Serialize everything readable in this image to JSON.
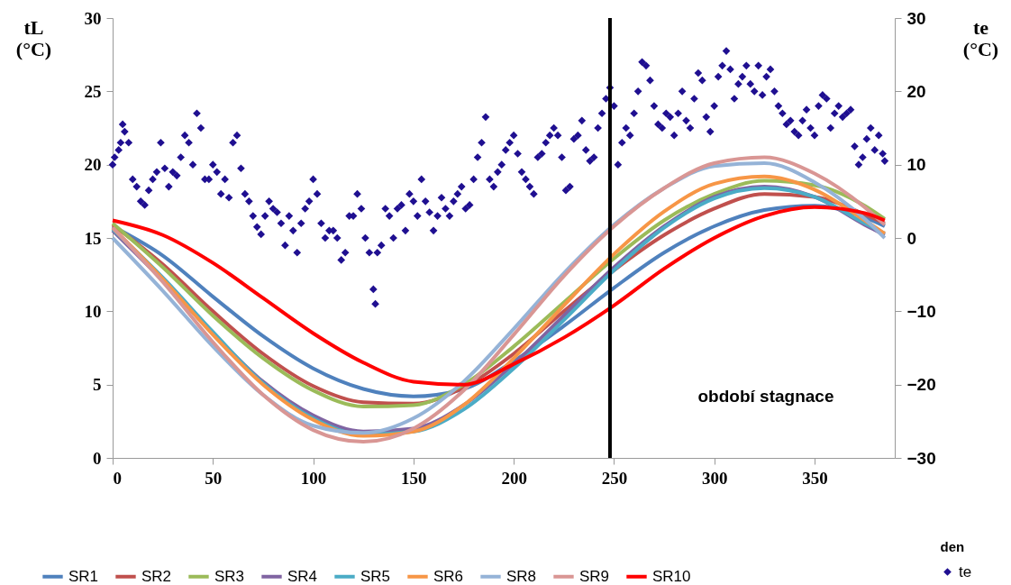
{
  "chart_data": {
    "type": "line",
    "ylabel": "tL (°C)",
    "y2label": "te (°C)",
    "xlabel": "den",
    "xlim": [
      0,
      390
    ],
    "xticks": [
      0,
      50,
      100,
      150,
      200,
      250,
      300,
      350
    ],
    "ylim": [
      0,
      30
    ],
    "yticks": [
      0,
      5,
      10,
      15,
      20,
      25,
      30
    ],
    "y2lim": [
      -30,
      30
    ],
    "y2ticks": [
      -30,
      -20,
      -10,
      0,
      10,
      20,
      30
    ],
    "legend": "bottom",
    "annotations": [
      "období stagnace"
    ],
    "ref_lines": [
      {
        "axis": "x",
        "value": 248,
        "color": "#000000"
      }
    ],
    "x": [
      0,
      25,
      50,
      75,
      100,
      125,
      150,
      175,
      200,
      225,
      250,
      275,
      300,
      325,
      350,
      375,
      385
    ],
    "series": [
      {
        "name": "SR1",
        "color": "#4f81bd",
        "values": [
          15.8,
          13.8,
          11.0,
          8.3,
          6.1,
          4.7,
          4.2,
          4.7,
          6.6,
          9.0,
          11.6,
          14.0,
          15.8,
          16.9,
          17.2,
          16.4,
          15.8
        ]
      },
      {
        "name": "SR2",
        "color": "#c0504d",
        "values": [
          15.9,
          13.2,
          10.0,
          7.1,
          4.9,
          3.8,
          3.7,
          4.8,
          7.1,
          10.0,
          12.8,
          15.2,
          17.0,
          18.0,
          17.8,
          16.6,
          16.0
        ]
      },
      {
        "name": "SR3",
        "color": "#9bbb59",
        "values": [
          16.0,
          13.0,
          9.7,
          6.8,
          4.6,
          3.5,
          3.6,
          5.0,
          7.6,
          10.6,
          13.6,
          16.2,
          18.0,
          18.9,
          18.6,
          17.2,
          16.3
        ]
      },
      {
        "name": "SR4",
        "color": "#8064a2",
        "values": [
          15.5,
          12.1,
          8.5,
          5.2,
          2.9,
          1.8,
          2.0,
          3.6,
          6.4,
          9.7,
          13.0,
          15.8,
          17.8,
          18.5,
          17.8,
          15.9,
          15.2
        ]
      },
      {
        "name": "SR5",
        "color": "#4bacc6",
        "values": [
          15.6,
          12.3,
          8.6,
          5.1,
          2.7,
          1.6,
          1.8,
          3.3,
          6.1,
          9.4,
          12.8,
          15.7,
          17.7,
          18.4,
          17.8,
          16.0,
          15.3
        ]
      },
      {
        "name": "SR6",
        "color": "#f79646",
        "values": [
          15.7,
          12.2,
          8.4,
          5.0,
          2.6,
          1.5,
          1.8,
          3.6,
          6.8,
          10.4,
          13.9,
          16.8,
          18.7,
          19.2,
          18.3,
          16.2,
          15.3
        ]
      },
      {
        "name": "SR8",
        "color": "#95b3d7",
        "values": [
          15.0,
          11.4,
          7.6,
          4.3,
          2.2,
          1.7,
          2.7,
          5.2,
          8.8,
          12.6,
          15.9,
          18.4,
          19.9,
          20.1,
          18.8,
          16.3,
          15.0
        ]
      },
      {
        "name": "SR9",
        "color": "#d99694",
        "values": [
          15.7,
          12.0,
          7.9,
          4.3,
          1.9,
          1.1,
          2.0,
          4.6,
          8.4,
          12.4,
          15.8,
          18.4,
          20.1,
          20.5,
          19.4,
          17.1,
          15.9
        ]
      },
      {
        "name": "SR10",
        "color": "#ff0000",
        "values": [
          16.2,
          15.2,
          13.3,
          10.9,
          8.5,
          6.5,
          5.2,
          5.0,
          6.4,
          8.2,
          10.4,
          12.9,
          15.0,
          16.5,
          17.1,
          16.7,
          16.2
        ]
      },
      {
        "name": "te",
        "type": "scatter",
        "axis": "y2",
        "marker": "diamond",
        "color": "#1f0f91",
        "x": [
          0,
          1,
          3,
          4,
          5,
          6,
          8,
          10,
          12,
          14,
          16,
          18,
          20,
          22,
          24,
          26,
          28,
          30,
          32,
          34,
          36,
          38,
          40,
          42,
          44,
          46,
          48,
          50,
          52,
          54,
          56,
          58,
          60,
          62,
          64,
          66,
          68,
          70,
          72,
          74,
          76,
          78,
          80,
          82,
          84,
          86,
          88,
          90,
          92,
          94,
          96,
          98,
          100,
          102,
          104,
          106,
          108,
          110,
          112,
          114,
          116,
          118,
          120,
          122,
          124,
          126,
          128,
          130,
          131,
          132,
          134,
          136,
          138,
          140,
          142,
          144,
          146,
          148,
          150,
          152,
          154,
          156,
          158,
          160,
          162,
          164,
          166,
          168,
          170,
          172,
          174,
          176,
          178,
          180,
          182,
          184,
          186,
          188,
          190,
          192,
          194,
          196,
          198,
          200,
          202,
          204,
          206,
          208,
          210,
          212,
          214,
          216,
          218,
          220,
          222,
          224,
          226,
          228,
          230,
          232,
          234,
          236,
          238,
          240,
          242,
          244,
          246,
          248,
          250,
          252,
          254,
          256,
          258,
          260,
          262,
          264,
          266,
          268,
          270,
          272,
          274,
          276,
          278,
          280,
          282,
          284,
          286,
          288,
          290,
          292,
          294,
          296,
          298,
          300,
          302,
          304,
          306,
          308,
          310,
          312,
          314,
          316,
          318,
          320,
          322,
          324,
          326,
          328,
          330,
          332,
          334,
          336,
          338,
          340,
          342,
          344,
          346,
          348,
          350,
          352,
          354,
          356,
          358,
          360,
          362,
          364,
          366,
          368,
          370,
          372,
          374,
          376,
          378,
          380,
          382,
          384,
          385
        ],
        "values": [
          10,
          11,
          12,
          13,
          15.5,
          14.5,
          13,
          8,
          7,
          5,
          4.5,
          6.5,
          8,
          9,
          13,
          9.5,
          7,
          9,
          8.5,
          11,
          14,
          13,
          10,
          17,
          15,
          8,
          8,
          10,
          9,
          6,
          8,
          5.5,
          13,
          14,
          9.5,
          6,
          5,
          3,
          1.5,
          0.5,
          3,
          5,
          4,
          3.5,
          2,
          -1,
          3,
          1,
          -2,
          2,
          4,
          5,
          8,
          6,
          2,
          0,
          1,
          1,
          0,
          -3,
          -2,
          3,
          3,
          6,
          4,
          0,
          -2,
          -7,
          -9,
          -2,
          -1,
          4,
          3,
          0,
          4,
          4.5,
          1,
          6,
          5,
          3,
          8,
          5,
          3.5,
          1,
          3,
          5.5,
          4,
          3,
          5,
          6,
          7,
          4,
          4.5,
          8,
          11,
          13,
          16.5,
          8,
          7,
          9,
          10,
          12,
          13,
          14,
          11.5,
          9,
          8,
          7,
          6,
          11,
          11.5,
          13,
          14,
          15,
          14,
          11,
          6.5,
          7,
          13.5,
          14,
          16,
          12,
          10.5,
          11,
          15,
          17,
          19,
          20.5,
          18,
          10,
          13,
          15,
          14,
          17,
          20,
          24,
          23.5,
          21.5,
          18,
          15.5,
          15,
          17,
          16.5,
          14,
          17,
          20,
          16,
          15,
          19,
          22.5,
          21.5,
          16.5,
          14.5,
          18,
          22,
          23.5,
          25.5,
          23,
          19,
          21,
          22,
          23.5,
          21,
          20,
          23.5,
          19.5,
          22,
          23,
          20,
          18,
          17,
          15.5,
          16,
          14.5,
          14,
          16,
          17.5,
          15,
          14,
          18,
          19.5,
          19,
          15,
          17,
          18,
          16.5,
          17,
          17.5,
          12.5,
          10,
          11,
          13.5,
          15,
          12,
          14,
          11.5,
          10.5
        ]
      }
    ]
  }
}
